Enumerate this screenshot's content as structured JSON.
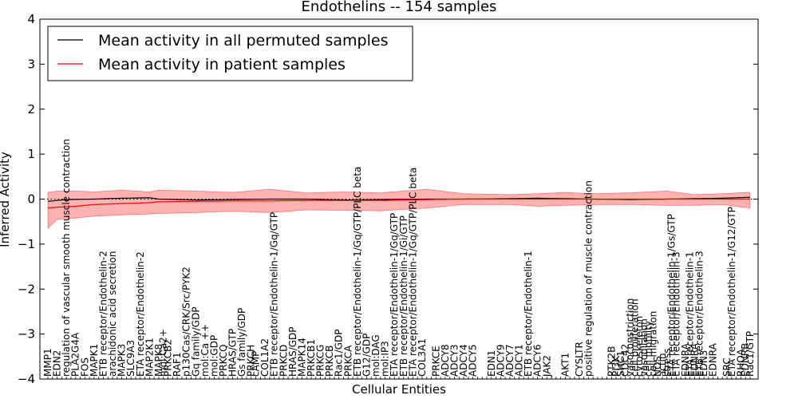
{
  "chart_data": {
    "type": "line",
    "title": "Endothelins -- 154 samples",
    "xlabel": "Cellular Entities",
    "ylabel": "Inferred Activity",
    "ylim": [
      -4,
      4
    ],
    "yticks": [
      "4",
      "3",
      "2",
      "1",
      "0",
      "−1",
      "−2",
      "−3",
      "−4"
    ],
    "legend": {
      "placement": "top-left",
      "entries": [
        {
          "label": "Mean activity in all permuted samples",
          "color": "#000000"
        },
        {
          "label": "Mean activity in patient samples",
          "color": "#ff0000"
        }
      ]
    },
    "band_color": "#ff0000",
    "n_points": 153,
    "categories": [
      {
        "i": 0,
        "label": "MMP1"
      },
      {
        "i": 2,
        "label": "EDN2"
      },
      {
        "i": 4,
        "label": "regulation of vascular smooth muscle contraction"
      },
      {
        "i": 6,
        "label": "PLA2G4A"
      },
      {
        "i": 8,
        "label": "FOS"
      },
      {
        "i": 10,
        "label": "MAPK1"
      },
      {
        "i": 12,
        "label": "ETB receptor/Endothelin-2"
      },
      {
        "i": 14,
        "label": "arachidonic acid secretion"
      },
      {
        "i": 16,
        "label": "MAPK3"
      },
      {
        "i": 18,
        "label": "SLC9A3"
      },
      {
        "i": 20,
        "label": "ETA receptor/Endothelin-2"
      },
      {
        "i": 22,
        "label": "MAP2K1"
      },
      {
        "i": 24,
        "label": "MAPK8"
      },
      {
        "i": 25,
        "label": "mol:Ca2+"
      },
      {
        "i": 26,
        "label": "PRKCB2"
      },
      {
        "i": 28,
        "label": "RAF1"
      },
      {
        "i": 30,
        "label": "p130Cas/CRK/Src/PYK2"
      },
      {
        "i": 32,
        "label": "Gq family/GDP"
      },
      {
        "i": 34,
        "label": "mol:Ca ++"
      },
      {
        "i": 36,
        "label": "mol:GDP"
      },
      {
        "i": 38,
        "label": "PRKCQ"
      },
      {
        "i": 40,
        "label": "HRAS/GTP"
      },
      {
        "i": 42,
        "label": "Gs family/GDP"
      },
      {
        "i": 44,
        "label": "PRKCH"
      },
      {
        "i": 45,
        "label": "cAMP"
      },
      {
        "i": 47,
        "label": "COL1A2"
      },
      {
        "i": 49,
        "label": "ETB receptor/Endothelin-1/Gq/GTP"
      },
      {
        "i": 51,
        "label": "PRKCD"
      },
      {
        "i": 53,
        "label": "HRAS/GDP"
      },
      {
        "i": 55,
        "label": "MAPK14"
      },
      {
        "i": 57,
        "label": "PRKCB1"
      },
      {
        "i": 59,
        "label": "PRKCG"
      },
      {
        "i": 61,
        "label": "PRKCB"
      },
      {
        "i": 63,
        "label": "Rac1/GDP"
      },
      {
        "i": 65,
        "label": "PRKCA"
      },
      {
        "i": 67,
        "label": "ETB receptor/Endothelin-1/Gq/GTP/PLC beta"
      },
      {
        "i": 69,
        "label": "G12/GDP"
      },
      {
        "i": 71,
        "label": "mol:DAG"
      },
      {
        "i": 73,
        "label": "mol:IP3"
      },
      {
        "i": 75,
        "label": "ETA receptor/Endothelin-1/Gq/GTP"
      },
      {
        "i": 77,
        "label": "ETB receptor/Endothelin-1/Gi/GTP"
      },
      {
        "i": 79,
        "label": "ETA receptor/Endothelin-1/Gq/GTP/PLC beta"
      },
      {
        "i": 81,
        "label": "COL3A1"
      },
      {
        "i": 84,
        "label": "PRKCE"
      },
      {
        "i": 86,
        "label": "ADCY8"
      },
      {
        "i": 88,
        "label": "ADCY3"
      },
      {
        "i": 90,
        "label": "ADCY4"
      },
      {
        "i": 92,
        "label": "ADCY5"
      },
      {
        "i": 96,
        "label": "EDN1"
      },
      {
        "i": 98,
        "label": "ADCY9"
      },
      {
        "i": 100,
        "label": "ADCY7"
      },
      {
        "i": 102,
        "label": "ADCY1"
      },
      {
        "i": 104,
        "label": "ETB receptor/Endothelin-1"
      },
      {
        "i": 106,
        "label": "ADCY6"
      },
      {
        "i": 108,
        "label": "JAK2"
      },
      {
        "i": 112,
        "label": "AKT1"
      },
      {
        "i": 115,
        "label": "CYSLTR"
      },
      {
        "i": 117,
        "label": "positive regulation of muscle contraction"
      },
      {
        "i": 122,
        "label": "PTK2B"
      },
      {
        "i": 123,
        "label": "PI3K"
      },
      {
        "i": 124,
        "label": "SHC1"
      },
      {
        "i": 125,
        "label": "CDC42"
      },
      {
        "i": 126,
        "label": "vasoconstriction"
      },
      {
        "i": 127,
        "label": "cell proliferation"
      },
      {
        "i": 128,
        "label": "cytoskeleton"
      },
      {
        "i": 129,
        "label": "vasodilation"
      },
      {
        "i": 130,
        "label": "cell motility"
      },
      {
        "i": 131,
        "label": "cell migration"
      },
      {
        "i": 132,
        "label": "NOS"
      },
      {
        "i": 133,
        "label": "actin"
      },
      {
        "i": 134,
        "label": "stress"
      },
      {
        "i": 135,
        "label": "ETA receptor/Endothelin-1/Gs/GTP"
      },
      {
        "i": 136,
        "label": "ETA receptor/Endothelin-3"
      },
      {
        "i": 138,
        "label": "EDNRA"
      },
      {
        "i": 139,
        "label": "ETA receptor/Endothelin-1"
      },
      {
        "i": 140,
        "label": "EDNRA"
      },
      {
        "i": 141,
        "label": "ETB receptor/Endothelin-3"
      },
      {
        "i": 142,
        "label": "EDN3"
      },
      {
        "i": 144,
        "label": "EDNRA"
      },
      {
        "i": 147,
        "label": "SRC"
      },
      {
        "i": 148,
        "label": "ETA receptor/Endothelin-1/G12/GTP"
      },
      {
        "i": 150,
        "label": "RHOA"
      },
      {
        "i": 151,
        "label": "EDNRB"
      },
      {
        "i": 152,
        "label": "Rac1/GTP"
      }
    ],
    "series": [
      {
        "name": "Mean activity in all permuted samples",
        "color": "#000000",
        "points": [
          [
            0,
            -0.05
          ],
          [
            4,
            -0.01
          ],
          [
            10,
            0.0
          ],
          [
            16,
            0.02
          ],
          [
            22,
            0.03
          ],
          [
            24,
            0.0
          ],
          [
            32,
            -0.02
          ],
          [
            40,
            -0.01
          ],
          [
            48,
            0.0
          ],
          [
            56,
            0.0
          ],
          [
            64,
            -0.02
          ],
          [
            72,
            -0.01
          ],
          [
            82,
            0.0
          ],
          [
            90,
            0.0
          ],
          [
            100,
            0.01
          ],
          [
            106,
            0.02
          ],
          [
            112,
            0.01
          ],
          [
            118,
            0.0
          ],
          [
            126,
            -0.01
          ],
          [
            134,
            0.0
          ],
          [
            140,
            0.01
          ],
          [
            146,
            0.02
          ],
          [
            152,
            0.04
          ]
        ]
      },
      {
        "name": "Mean activity in patient samples",
        "color": "#ff0000",
        "points": [
          [
            0,
            -0.2
          ],
          [
            2,
            -0.18
          ],
          [
            6,
            -0.16
          ],
          [
            10,
            -0.12
          ],
          [
            16,
            -0.1
          ],
          [
            22,
            -0.08
          ],
          [
            24,
            -0.06
          ],
          [
            32,
            -0.05
          ],
          [
            40,
            -0.04
          ],
          [
            48,
            -0.04
          ],
          [
            56,
            -0.03
          ],
          [
            64,
            -0.03
          ],
          [
            72,
            -0.03
          ],
          [
            82,
            -0.01
          ],
          [
            90,
            0.0
          ],
          [
            100,
            0.0
          ],
          [
            106,
            0.0
          ],
          [
            112,
            0.0
          ],
          [
            118,
            0.0
          ],
          [
            126,
            0.0
          ],
          [
            134,
            0.0
          ],
          [
            140,
            0.0
          ],
          [
            146,
            0.0
          ],
          [
            152,
            0.0
          ]
        ],
        "band_upper": [
          [
            0,
            0.15
          ],
          [
            2,
            0.18
          ],
          [
            6,
            0.18
          ],
          [
            10,
            0.16
          ],
          [
            16,
            0.2
          ],
          [
            22,
            0.16
          ],
          [
            24,
            0.2
          ],
          [
            32,
            0.18
          ],
          [
            40,
            0.15
          ],
          [
            48,
            0.22
          ],
          [
            56,
            0.14
          ],
          [
            64,
            0.16
          ],
          [
            72,
            0.14
          ],
          [
            82,
            0.22
          ],
          [
            90,
            0.12
          ],
          [
            100,
            0.1
          ],
          [
            106,
            0.12
          ],
          [
            112,
            0.15
          ],
          [
            118,
            0.12
          ],
          [
            126,
            0.14
          ],
          [
            134,
            0.18
          ],
          [
            140,
            0.1
          ],
          [
            146,
            0.12
          ],
          [
            152,
            0.15
          ]
        ],
        "band_lower": [
          [
            0,
            -0.65
          ],
          [
            2,
            -0.45
          ],
          [
            6,
            -0.42
          ],
          [
            10,
            -0.38
          ],
          [
            16,
            -0.35
          ],
          [
            22,
            -0.33
          ],
          [
            24,
            -0.32
          ],
          [
            32,
            -0.3
          ],
          [
            40,
            -0.27
          ],
          [
            48,
            -0.3
          ],
          [
            56,
            -0.24
          ],
          [
            64,
            -0.25
          ],
          [
            72,
            -0.26
          ],
          [
            82,
            -0.2
          ],
          [
            90,
            -0.12
          ],
          [
            100,
            -0.12
          ],
          [
            106,
            -0.16
          ],
          [
            112,
            -0.14
          ],
          [
            118,
            -0.12
          ],
          [
            126,
            -0.12
          ],
          [
            134,
            -0.14
          ],
          [
            140,
            -0.14
          ],
          [
            146,
            -0.12
          ],
          [
            152,
            -0.2
          ]
        ]
      }
    ],
    "reference_line": {
      "y": 0,
      "style": "dotted"
    }
  }
}
